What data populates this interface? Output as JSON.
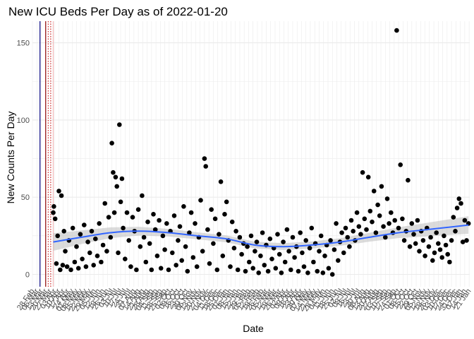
{
  "chart_data": {
    "type": "scatter",
    "title": "New ICU Beds Per Day as of 2022-01-20",
    "xlabel": "Date",
    "ylabel": "New Counts Per Day",
    "ylim": [
      -8,
      164
    ],
    "yticks": [
      0,
      50,
      100,
      150
    ],
    "x_start": "2020-02-28",
    "x_end": "2022-01-22",
    "grid": true,
    "point_color": "#000000",
    "smooth_color": "#3366ff",
    "smooth_band_color": "#bdbdbd",
    "reference_lines": [
      {
        "x": "2020-03-11",
        "style": "solid",
        "color": "#00007f"
      },
      {
        "x": "2020-03-20",
        "style": "solid",
        "color": "#8b0000"
      },
      {
        "x": "2020-03-24",
        "style": "dotted",
        "color": "#cc0000"
      },
      {
        "x": "2020-03-28",
        "style": "dotted",
        "color": "#cc0000"
      },
      {
        "x": "2020-04-01",
        "style": "solid",
        "color": "#f0b8b8"
      }
    ],
    "smooth_fit": [
      {
        "x": "2020-04-01",
        "y": 21
      },
      {
        "x": "2020-05-15",
        "y": 24
      },
      {
        "x": "2020-07-01",
        "y": 27
      },
      {
        "x": "2020-08-15",
        "y": 28
      },
      {
        "x": "2020-10-01",
        "y": 27
      },
      {
        "x": "2020-11-15",
        "y": 25
      },
      {
        "x": "2021-01-01",
        "y": 23
      },
      {
        "x": "2021-02-15",
        "y": 19
      },
      {
        "x": "2021-04-01",
        "y": 18
      },
      {
        "x": "2021-05-15",
        "y": 19
      },
      {
        "x": "2021-07-01",
        "y": 21
      },
      {
        "x": "2021-08-15",
        "y": 24
      },
      {
        "x": "2021-10-01",
        "y": 27
      },
      {
        "x": "2021-11-15",
        "y": 29
      },
      {
        "x": "2022-01-20",
        "y": 32
      }
    ],
    "points": [
      {
        "x": "2020-04-01",
        "y": 40
      },
      {
        "x": "2020-04-02",
        "y": 44
      },
      {
        "x": "2020-04-04",
        "y": 36
      },
      {
        "x": "2020-04-06",
        "y": 7
      },
      {
        "x": "2020-04-08",
        "y": 25
      },
      {
        "x": "2020-04-10",
        "y": 54
      },
      {
        "x": "2020-04-12",
        "y": 3
      },
      {
        "x": "2020-04-14",
        "y": 51
      },
      {
        "x": "2020-04-16",
        "y": 6
      },
      {
        "x": "2020-04-18",
        "y": 28
      },
      {
        "x": "2020-04-20",
        "y": 15
      },
      {
        "x": "2020-04-23",
        "y": 5
      },
      {
        "x": "2020-04-26",
        "y": 22
      },
      {
        "x": "2020-04-29",
        "y": 3
      },
      {
        "x": "2020-05-02",
        "y": 30
      },
      {
        "x": "2020-05-05",
        "y": 8
      },
      {
        "x": "2020-05-08",
        "y": 18
      },
      {
        "x": "2020-05-11",
        "y": 4
      },
      {
        "x": "2020-05-14",
        "y": 26
      },
      {
        "x": "2020-05-17",
        "y": 10
      },
      {
        "x": "2020-05-20",
        "y": 32
      },
      {
        "x": "2020-05-23",
        "y": 5
      },
      {
        "x": "2020-05-26",
        "y": 21
      },
      {
        "x": "2020-05-29",
        "y": 14
      },
      {
        "x": "2020-06-01",
        "y": 28
      },
      {
        "x": "2020-06-04",
        "y": 6
      },
      {
        "x": "2020-06-07",
        "y": 23
      },
      {
        "x": "2020-06-10",
        "y": 12
      },
      {
        "x": "2020-06-13",
        "y": 33
      },
      {
        "x": "2020-06-16",
        "y": 8
      },
      {
        "x": "2020-06-19",
        "y": 19
      },
      {
        "x": "2020-06-22",
        "y": 46
      },
      {
        "x": "2020-06-25",
        "y": 15
      },
      {
        "x": "2020-06-28",
        "y": 37
      },
      {
        "x": "2020-07-01",
        "y": 24
      },
      {
        "x": "2020-07-03",
        "y": 85
      },
      {
        "x": "2020-07-05",
        "y": 66
      },
      {
        "x": "2020-07-07",
        "y": 40
      },
      {
        "x": "2020-07-09",
        "y": 63
      },
      {
        "x": "2020-07-11",
        "y": 57
      },
      {
        "x": "2020-07-13",
        "y": 14
      },
      {
        "x": "2020-07-15",
        "y": 97
      },
      {
        "x": "2020-07-17",
        "y": 47
      },
      {
        "x": "2020-07-19",
        "y": 62
      },
      {
        "x": "2020-07-21",
        "y": 30
      },
      {
        "x": "2020-07-24",
        "y": 10
      },
      {
        "x": "2020-07-27",
        "y": 40
      },
      {
        "x": "2020-07-30",
        "y": 22
      },
      {
        "x": "2020-08-02",
        "y": 5
      },
      {
        "x": "2020-08-05",
        "y": 37
      },
      {
        "x": "2020-08-08",
        "y": 28
      },
      {
        "x": "2020-08-11",
        "y": 3
      },
      {
        "x": "2020-08-14",
        "y": 42
      },
      {
        "x": "2020-08-17",
        "y": 18
      },
      {
        "x": "2020-08-20",
        "y": 51
      },
      {
        "x": "2020-08-23",
        "y": 24
      },
      {
        "x": "2020-08-26",
        "y": 8
      },
      {
        "x": "2020-08-29",
        "y": 34
      },
      {
        "x": "2020-09-01",
        "y": 20
      },
      {
        "x": "2020-09-04",
        "y": 3
      },
      {
        "x": "2020-09-07",
        "y": 39
      },
      {
        "x": "2020-09-10",
        "y": 29
      },
      {
        "x": "2020-09-13",
        "y": 12
      },
      {
        "x": "2020-09-16",
        "y": 35
      },
      {
        "x": "2020-09-19",
        "y": 4
      },
      {
        "x": "2020-09-22",
        "y": 25
      },
      {
        "x": "2020-09-25",
        "y": 16
      },
      {
        "x": "2020-09-28",
        "y": 33
      },
      {
        "x": "2020-10-01",
        "y": 3
      },
      {
        "x": "2020-10-04",
        "y": 28
      },
      {
        "x": "2020-10-07",
        "y": 14
      },
      {
        "x": "2020-10-10",
        "y": 38
      },
      {
        "x": "2020-10-13",
        "y": 6
      },
      {
        "x": "2020-10-16",
        "y": 22
      },
      {
        "x": "2020-10-19",
        "y": 31
      },
      {
        "x": "2020-10-22",
        "y": 9
      },
      {
        "x": "2020-10-25",
        "y": 44
      },
      {
        "x": "2020-10-28",
        "y": 18
      },
      {
        "x": "2020-10-31",
        "y": 2
      },
      {
        "x": "2020-11-03",
        "y": 27
      },
      {
        "x": "2020-11-06",
        "y": 40
      },
      {
        "x": "2020-11-09",
        "y": 11
      },
      {
        "x": "2020-11-12",
        "y": 33
      },
      {
        "x": "2020-11-15",
        "y": 5
      },
      {
        "x": "2020-11-18",
        "y": 24
      },
      {
        "x": "2020-11-21",
        "y": 48
      },
      {
        "x": "2020-11-24",
        "y": 15
      },
      {
        "x": "2020-11-27",
        "y": 75
      },
      {
        "x": "2020-11-29",
        "y": 70
      },
      {
        "x": "2020-12-02",
        "y": 29
      },
      {
        "x": "2020-12-05",
        "y": 7
      },
      {
        "x": "2020-12-08",
        "y": 42
      },
      {
        "x": "2020-12-11",
        "y": 20
      },
      {
        "x": "2020-12-14",
        "y": 36
      },
      {
        "x": "2020-12-17",
        "y": 3
      },
      {
        "x": "2020-12-20",
        "y": 26
      },
      {
        "x": "2020-12-23",
        "y": 60
      },
      {
        "x": "2020-12-26",
        "y": 12
      },
      {
        "x": "2020-12-29",
        "y": 39
      },
      {
        "x": "2021-01-01",
        "y": 47
      },
      {
        "x": "2021-01-04",
        "y": 22
      },
      {
        "x": "2021-01-07",
        "y": 5
      },
      {
        "x": "2021-01-10",
        "y": 34
      },
      {
        "x": "2021-01-13",
        "y": 17
      },
      {
        "x": "2021-01-16",
        "y": 28
      },
      {
        "x": "2021-01-19",
        "y": 3
      },
      {
        "x": "2021-01-22",
        "y": 24
      },
      {
        "x": "2021-01-25",
        "y": 13
      },
      {
        "x": "2021-01-28",
        "y": 20
      },
      {
        "x": "2021-01-31",
        "y": 2
      },
      {
        "x": "2021-02-03",
        "y": 18
      },
      {
        "x": "2021-02-06",
        "y": 8
      },
      {
        "x": "2021-02-09",
        "y": 25
      },
      {
        "x": "2021-02-12",
        "y": 4
      },
      {
        "x": "2021-02-15",
        "y": 15
      },
      {
        "x": "2021-02-18",
        "y": 21
      },
      {
        "x": "2021-02-21",
        "y": 1
      },
      {
        "x": "2021-02-24",
        "y": 12
      },
      {
        "x": "2021-02-27",
        "y": 27
      },
      {
        "x": "2021-03-02",
        "y": 6
      },
      {
        "x": "2021-03-05",
        "y": 19
      },
      {
        "x": "2021-03-08",
        "y": 2
      },
      {
        "x": "2021-03-11",
        "y": 23
      },
      {
        "x": "2021-03-14",
        "y": 10
      },
      {
        "x": "2021-03-17",
        "y": 17
      },
      {
        "x": "2021-03-20",
        "y": 4
      },
      {
        "x": "2021-03-23",
        "y": 26
      },
      {
        "x": "2021-03-26",
        "y": 13
      },
      {
        "x": "2021-03-29",
        "y": 1
      },
      {
        "x": "2021-04-01",
        "y": 21
      },
      {
        "x": "2021-04-04",
        "y": 8
      },
      {
        "x": "2021-04-07",
        "y": 29
      },
      {
        "x": "2021-04-10",
        "y": 15
      },
      {
        "x": "2021-04-13",
        "y": 3
      },
      {
        "x": "2021-04-16",
        "y": 24
      },
      {
        "x": "2021-04-19",
        "y": 11
      },
      {
        "x": "2021-04-22",
        "y": 18
      },
      {
        "x": "2021-04-25",
        "y": 2
      },
      {
        "x": "2021-04-28",
        "y": 27
      },
      {
        "x": "2021-05-01",
        "y": 14
      },
      {
        "x": "2021-05-04",
        "y": 5
      },
      {
        "x": "2021-05-07",
        "y": 22
      },
      {
        "x": "2021-05-10",
        "y": 1
      },
      {
        "x": "2021-05-13",
        "y": 17
      },
      {
        "x": "2021-05-16",
        "y": 30
      },
      {
        "x": "2021-05-19",
        "y": 8
      },
      {
        "x": "2021-05-22",
        "y": 20
      },
      {
        "x": "2021-05-25",
        "y": 2
      },
      {
        "x": "2021-05-28",
        "y": 15
      },
      {
        "x": "2021-05-31",
        "y": 25
      },
      {
        "x": "2021-06-03",
        "y": 1
      },
      {
        "x": "2021-06-06",
        "y": 12
      },
      {
        "x": "2021-06-09",
        "y": 19
      },
      {
        "x": "2021-06-12",
        "y": 4
      },
      {
        "x": "2021-06-15",
        "y": 22
      },
      {
        "x": "2021-06-18",
        "y": 0
      },
      {
        "x": "2021-06-21",
        "y": 16
      },
      {
        "x": "2021-06-24",
        "y": 33
      },
      {
        "x": "2021-06-27",
        "y": 9
      },
      {
        "x": "2021-06-30",
        "y": 21
      },
      {
        "x": "2021-07-03",
        "y": 27
      },
      {
        "x": "2021-07-06",
        "y": 14
      },
      {
        "x": "2021-07-09",
        "y": 30
      },
      {
        "x": "2021-07-12",
        "y": 24
      },
      {
        "x": "2021-07-15",
        "y": 18
      },
      {
        "x": "2021-07-18",
        "y": 35
      },
      {
        "x": "2021-07-21",
        "y": 28
      },
      {
        "x": "2021-07-24",
        "y": 22
      },
      {
        "x": "2021-07-27",
        "y": 40
      },
      {
        "x": "2021-07-30",
        "y": 31
      },
      {
        "x": "2021-08-02",
        "y": 26
      },
      {
        "x": "2021-08-05",
        "y": 66
      },
      {
        "x": "2021-08-08",
        "y": 36
      },
      {
        "x": "2021-08-11",
        "y": 29
      },
      {
        "x": "2021-08-14",
        "y": 63
      },
      {
        "x": "2021-08-17",
        "y": 41
      },
      {
        "x": "2021-08-20",
        "y": 34
      },
      {
        "x": "2021-08-23",
        "y": 54
      },
      {
        "x": "2021-08-26",
        "y": 27
      },
      {
        "x": "2021-08-29",
        "y": 45
      },
      {
        "x": "2021-09-01",
        "y": 38
      },
      {
        "x": "2021-09-04",
        "y": 57
      },
      {
        "x": "2021-09-07",
        "y": 31
      },
      {
        "x": "2021-09-10",
        "y": 24
      },
      {
        "x": "2021-09-13",
        "y": 49
      },
      {
        "x": "2021-09-16",
        "y": 33
      },
      {
        "x": "2021-09-19",
        "y": 40
      },
      {
        "x": "2021-09-22",
        "y": 27
      },
      {
        "x": "2021-09-25",
        "y": 35
      },
      {
        "x": "2021-09-28",
        "y": 158
      },
      {
        "x": "2021-10-01",
        "y": 30
      },
      {
        "x": "2021-10-04",
        "y": 71
      },
      {
        "x": "2021-10-07",
        "y": 36
      },
      {
        "x": "2021-10-10",
        "y": 22
      },
      {
        "x": "2021-10-13",
        "y": 28
      },
      {
        "x": "2021-10-16",
        "y": 61
      },
      {
        "x": "2021-10-19",
        "y": 18
      },
      {
        "x": "2021-10-22",
        "y": 33
      },
      {
        "x": "2021-10-25",
        "y": 26
      },
      {
        "x": "2021-10-28",
        "y": 20
      },
      {
        "x": "2021-10-31",
        "y": 35
      },
      {
        "x": "2021-11-03",
        "y": 15
      },
      {
        "x": "2021-11-06",
        "y": 28
      },
      {
        "x": "2021-11-09",
        "y": 22
      },
      {
        "x": "2021-11-12",
        "y": 12
      },
      {
        "x": "2021-11-15",
        "y": 30
      },
      {
        "x": "2021-11-18",
        "y": 18
      },
      {
        "x": "2021-11-21",
        "y": 24
      },
      {
        "x": "2021-11-24",
        "y": 9
      },
      {
        "x": "2021-11-27",
        "y": 14
      },
      {
        "x": "2021-11-30",
        "y": 27
      },
      {
        "x": "2021-12-03",
        "y": 20
      },
      {
        "x": "2021-12-06",
        "y": 16
      },
      {
        "x": "2021-12-09",
        "y": 11
      },
      {
        "x": "2021-12-12",
        "y": 25
      },
      {
        "x": "2021-12-15",
        "y": 19
      },
      {
        "x": "2021-12-18",
        "y": 13
      },
      {
        "x": "2021-12-21",
        "y": 8
      },
      {
        "x": "2021-12-24",
        "y": 22
      },
      {
        "x": "2021-12-27",
        "y": 37
      },
      {
        "x": "2021-12-30",
        "y": 28
      },
      {
        "x": "2022-01-02",
        "y": 43
      },
      {
        "x": "2022-01-05",
        "y": 49
      },
      {
        "x": "2022-01-08",
        "y": 46
      },
      {
        "x": "2022-01-11",
        "y": 21
      },
      {
        "x": "2022-01-14",
        "y": 35
      },
      {
        "x": "2022-01-17",
        "y": 22
      },
      {
        "x": "2022-01-20",
        "y": 33
      }
    ]
  }
}
